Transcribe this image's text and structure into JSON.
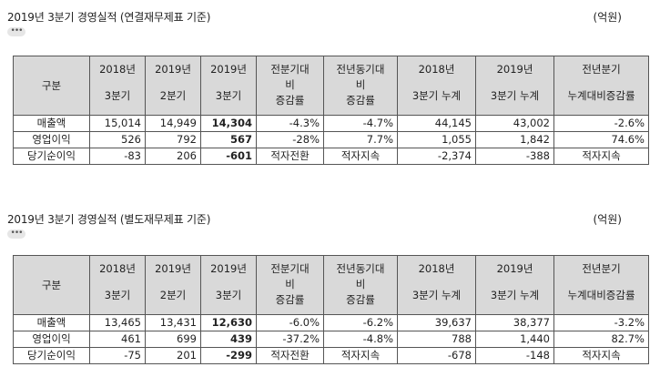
{
  "sections": [
    {
      "title": "2019년 3분기 경영실적 (연결재무제표 기준)",
      "unit": "(억원)",
      "more": "•••",
      "headers": {
        "gubun": "구분",
        "c1a": "2018년",
        "c1b": "3분기",
        "c2a": "2019년",
        "c2b": "2분기",
        "c3a": "2019년",
        "c3b": "3분기",
        "c4a": "전분기대",
        "c4m": "비",
        "c4b": "증감률",
        "c5a": "전년동기대",
        "c5m": "비",
        "c5b": "증감률",
        "c6a": "2018년",
        "c6b": "3분기 누계",
        "c7a": "2019년",
        "c7b": "3분기 누계",
        "c8a": "전년분기",
        "c8b": "누계대비증감률"
      },
      "rows": [
        {
          "label": "매출액",
          "v": [
            "15,014",
            "14,949",
            "14,304",
            "-4.3%",
            "-4.7%",
            "44,145",
            "43,002",
            "-2.6%"
          ]
        },
        {
          "label": "영업이익",
          "v": [
            "526",
            "792",
            "567",
            "-28%",
            "7.7%",
            "1,055",
            "1,842",
            "74.6%"
          ]
        },
        {
          "label": "당기순이익",
          "v": [
            "-83",
            "206",
            "-601",
            "적자전환",
            "적자지속",
            "-2,374",
            "-388",
            "적자지속"
          ]
        }
      ]
    },
    {
      "title": "2019년 3분기 경영실적 (별도재무제표 기준)",
      "unit": "(억원)",
      "more": "•••",
      "headers": {
        "gubun": "구분",
        "c1a": "2018년",
        "c1b": "3분기",
        "c2a": "2019년",
        "c2b": "2분기",
        "c3a": "2019년",
        "c3b": "3분기",
        "c4a": "전분기대",
        "c4m": "비",
        "c4b": "증감률",
        "c5a": "전년동기대",
        "c5m": "비",
        "c5b": "증감률",
        "c6a": "2018년",
        "c6b": "3분기 누계",
        "c7a": "2019년",
        "c7b": "3분기 누계",
        "c8a": "전년분기",
        "c8b": "누계대비증감률"
      },
      "rows": [
        {
          "label": "매출액",
          "v": [
            "13,465",
            "13,431",
            "12,630",
            "-6.0%",
            "-6.2%",
            "39,637",
            "38,377",
            "-3.2%"
          ]
        },
        {
          "label": "영업이익",
          "v": [
            "461",
            "699",
            "439",
            "-37.2%",
            "-4.8%",
            "788",
            "1,440",
            "82.7%"
          ]
        },
        {
          "label": "당기순이익",
          "v": [
            "-75",
            "201",
            "-299",
            "적자전환",
            "적자지속",
            "-678",
            "-148",
            "적자지속"
          ]
        }
      ]
    }
  ]
}
